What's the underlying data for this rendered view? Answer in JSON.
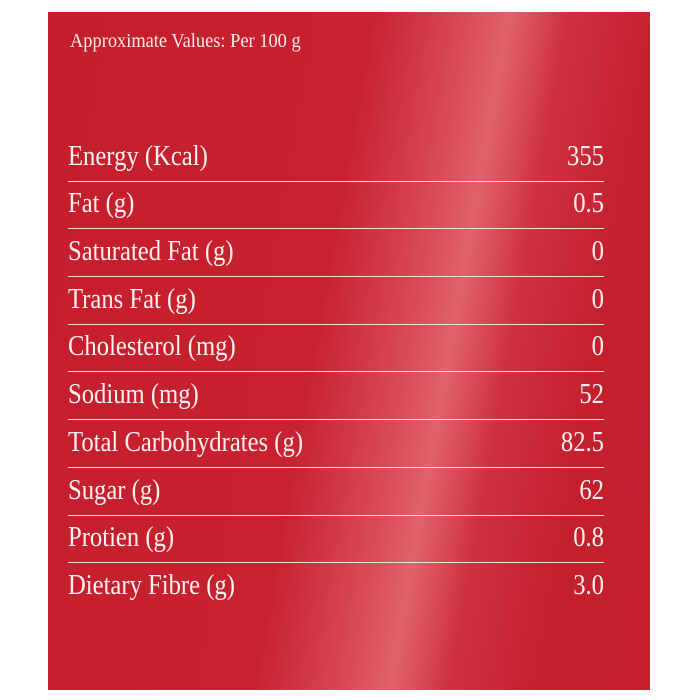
{
  "header": {
    "title": "Approximate Values: Per 100 g"
  },
  "table": {
    "rows": [
      [
        "Energy (Kcal)",
        "355"
      ],
      [
        "Fat (g)",
        "0.5"
      ],
      [
        "Saturated Fat (g)",
        "0"
      ],
      [
        "Trans Fat (g)",
        "0"
      ],
      [
        "Cholesterol (mg)",
        "0"
      ],
      [
        "Sodium (mg)",
        "52"
      ],
      [
        "Total Carbohydrates (g)",
        "82.5"
      ],
      [
        "Sugar (g)",
        "62"
      ],
      [
        "Protien (g)",
        "0.8"
      ],
      [
        "Dietary Fibre (g)",
        "3.0"
      ]
    ]
  }
}
